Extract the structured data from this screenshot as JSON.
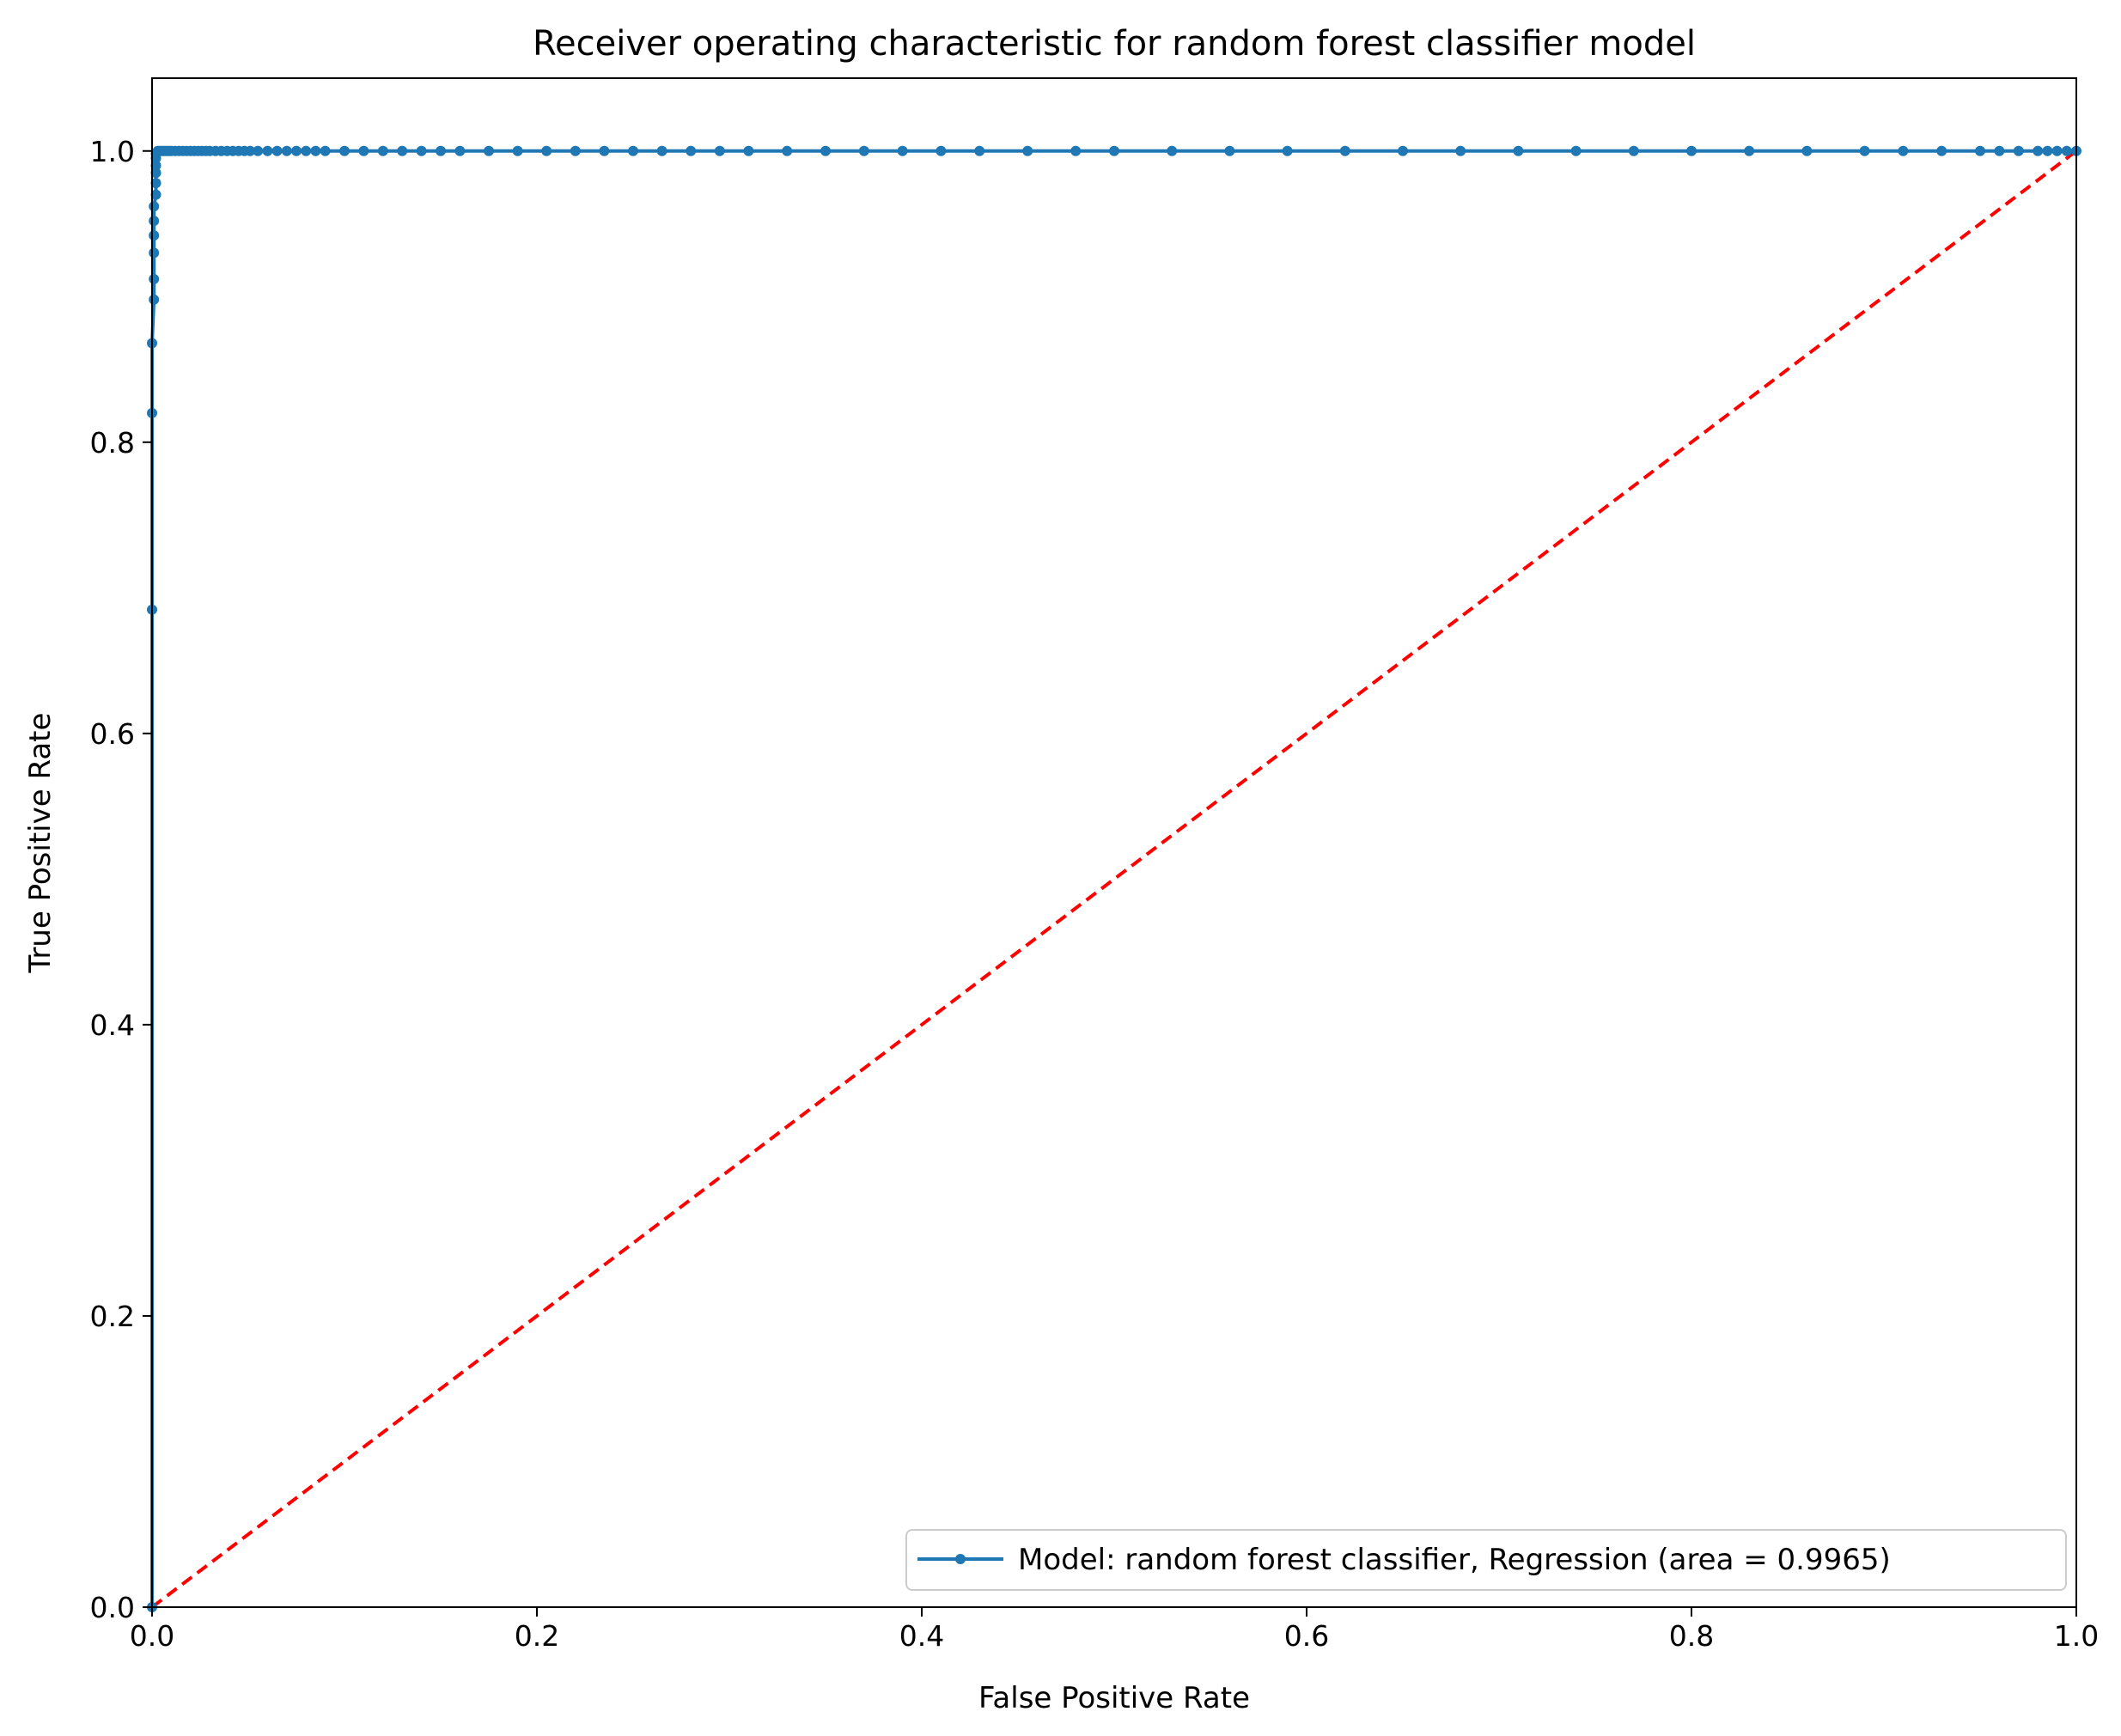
{
  "chart_data": {
    "type": "line",
    "title": "Receiver operating characteristic for random forest classifier model",
    "xlabel": "False Positive Rate",
    "ylabel": "True Positive Rate",
    "xlim": [
      0.0,
      1.0
    ],
    "ylim": [
      0.0,
      1.05
    ],
    "xticks": [
      "0.0",
      "0.2",
      "0.4",
      "0.6",
      "0.8",
      "1.0"
    ],
    "yticks": [
      "0.0",
      "0.2",
      "0.4",
      "0.6",
      "0.8",
      "1.0"
    ],
    "grid": false,
    "legend_position": "lower-right",
    "colors": {
      "roc": "#1f77b4",
      "baseline": "#ff0000"
    },
    "series": [
      {
        "name": "Model: random forest classifier, Regression (area = 0.9965)",
        "style": "solid-line-with-dots",
        "x": [
          0,
          0,
          0,
          0,
          0.001,
          0.001,
          0.001,
          0.001,
          0.001,
          0.001,
          0.002,
          0.002,
          0.002,
          0.002,
          0.002,
          0.002,
          0.003,
          0.004,
          0.005,
          0.006,
          0.007,
          0.008,
          0.009,
          0.01,
          0.012,
          0.014,
          0.016,
          0.018,
          0.02,
          0.022,
          0.024,
          0.026,
          0.028,
          0.03,
          0.033,
          0.036,
          0.039,
          0.042,
          0.045,
          0.048,
          0.051,
          0.055,
          0.06,
          0.065,
          0.07,
          0.075,
          0.08,
          0.085,
          0.09,
          0.1,
          0.11,
          0.12,
          0.13,
          0.14,
          0.15,
          0.16,
          0.175,
          0.19,
          0.205,
          0.22,
          0.235,
          0.25,
          0.265,
          0.28,
          0.295,
          0.31,
          0.33,
          0.35,
          0.37,
          0.39,
          0.41,
          0.43,
          0.455,
          0.48,
          0.5,
          0.53,
          0.56,
          0.59,
          0.62,
          0.65,
          0.68,
          0.71,
          0.74,
          0.77,
          0.8,
          0.83,
          0.86,
          0.89,
          0.91,
          0.93,
          0.95,
          0.96,
          0.97,
          0.98,
          0.985,
          0.99,
          0.995,
          1.0
        ],
        "y": [
          0,
          0.685,
          0.82,
          0.868,
          0.898,
          0.912,
          0.93,
          0.942,
          0.952,
          0.962,
          0.97,
          0.978,
          0.985,
          0.99,
          0.995,
          0.998,
          1.0,
          1.0,
          1.0,
          1.0,
          1.0,
          1.0,
          1.0,
          1.0,
          1.0,
          1.0,
          1.0,
          1.0,
          1.0,
          1.0,
          1.0,
          1.0,
          1.0,
          1.0,
          1.0,
          1.0,
          1.0,
          1.0,
          1.0,
          1.0,
          1.0,
          1.0,
          1.0,
          1.0,
          1.0,
          1.0,
          1.0,
          1.0,
          1.0,
          1.0,
          1.0,
          1.0,
          1.0,
          1.0,
          1.0,
          1.0,
          1.0,
          1.0,
          1.0,
          1.0,
          1.0,
          1.0,
          1.0,
          1.0,
          1.0,
          1.0,
          1.0,
          1.0,
          1.0,
          1.0,
          1.0,
          1.0,
          1.0,
          1.0,
          1.0,
          1.0,
          1.0,
          1.0,
          1.0,
          1.0,
          1.0,
          1.0,
          1.0,
          1.0,
          1.0,
          1.0,
          1.0,
          1.0,
          1.0,
          1.0,
          1.0,
          1.0,
          1.0,
          1.0,
          1.0,
          1.0,
          1.0,
          1.0
        ]
      },
      {
        "name": "",
        "style": "dashed-line",
        "x": [
          0.0,
          1.0
        ],
        "y": [
          0.0,
          1.0
        ]
      }
    ]
  }
}
